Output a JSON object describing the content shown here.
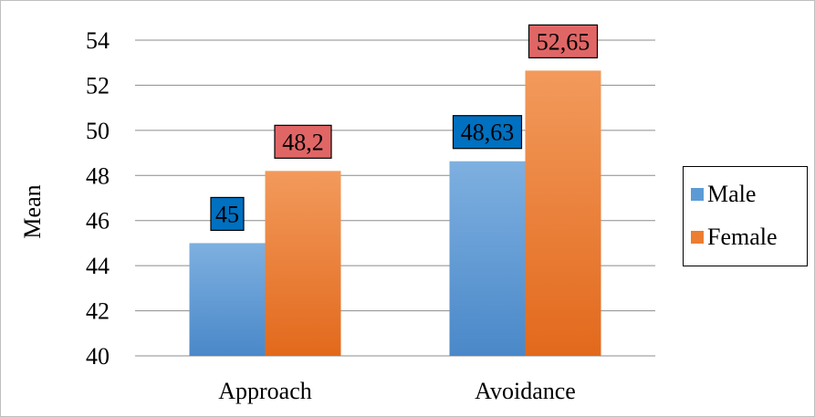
{
  "chart_data": {
    "type": "bar",
    "categories": [
      "Approach",
      "Avoidance"
    ],
    "series": [
      {
        "name": "Male",
        "values": [
          45,
          48.63
        ],
        "labels": [
          "45",
          "48,63"
        ],
        "color": "#5b9bd5",
        "label_bg": "#0070c0"
      },
      {
        "name": "Female",
        "values": [
          48.2,
          52.65
        ],
        "labels": [
          "48,2",
          "52,65"
        ],
        "color": "#ed7d31",
        "label_bg": "#e06666"
      }
    ],
    "title": "",
    "xlabel": "",
    "ylabel": "Mean",
    "ylim": [
      40,
      54
    ],
    "yticks": [
      "40",
      "42",
      "44",
      "46",
      "48",
      "50",
      "52",
      "54"
    ],
    "grid": true,
    "legend_position": "right"
  }
}
